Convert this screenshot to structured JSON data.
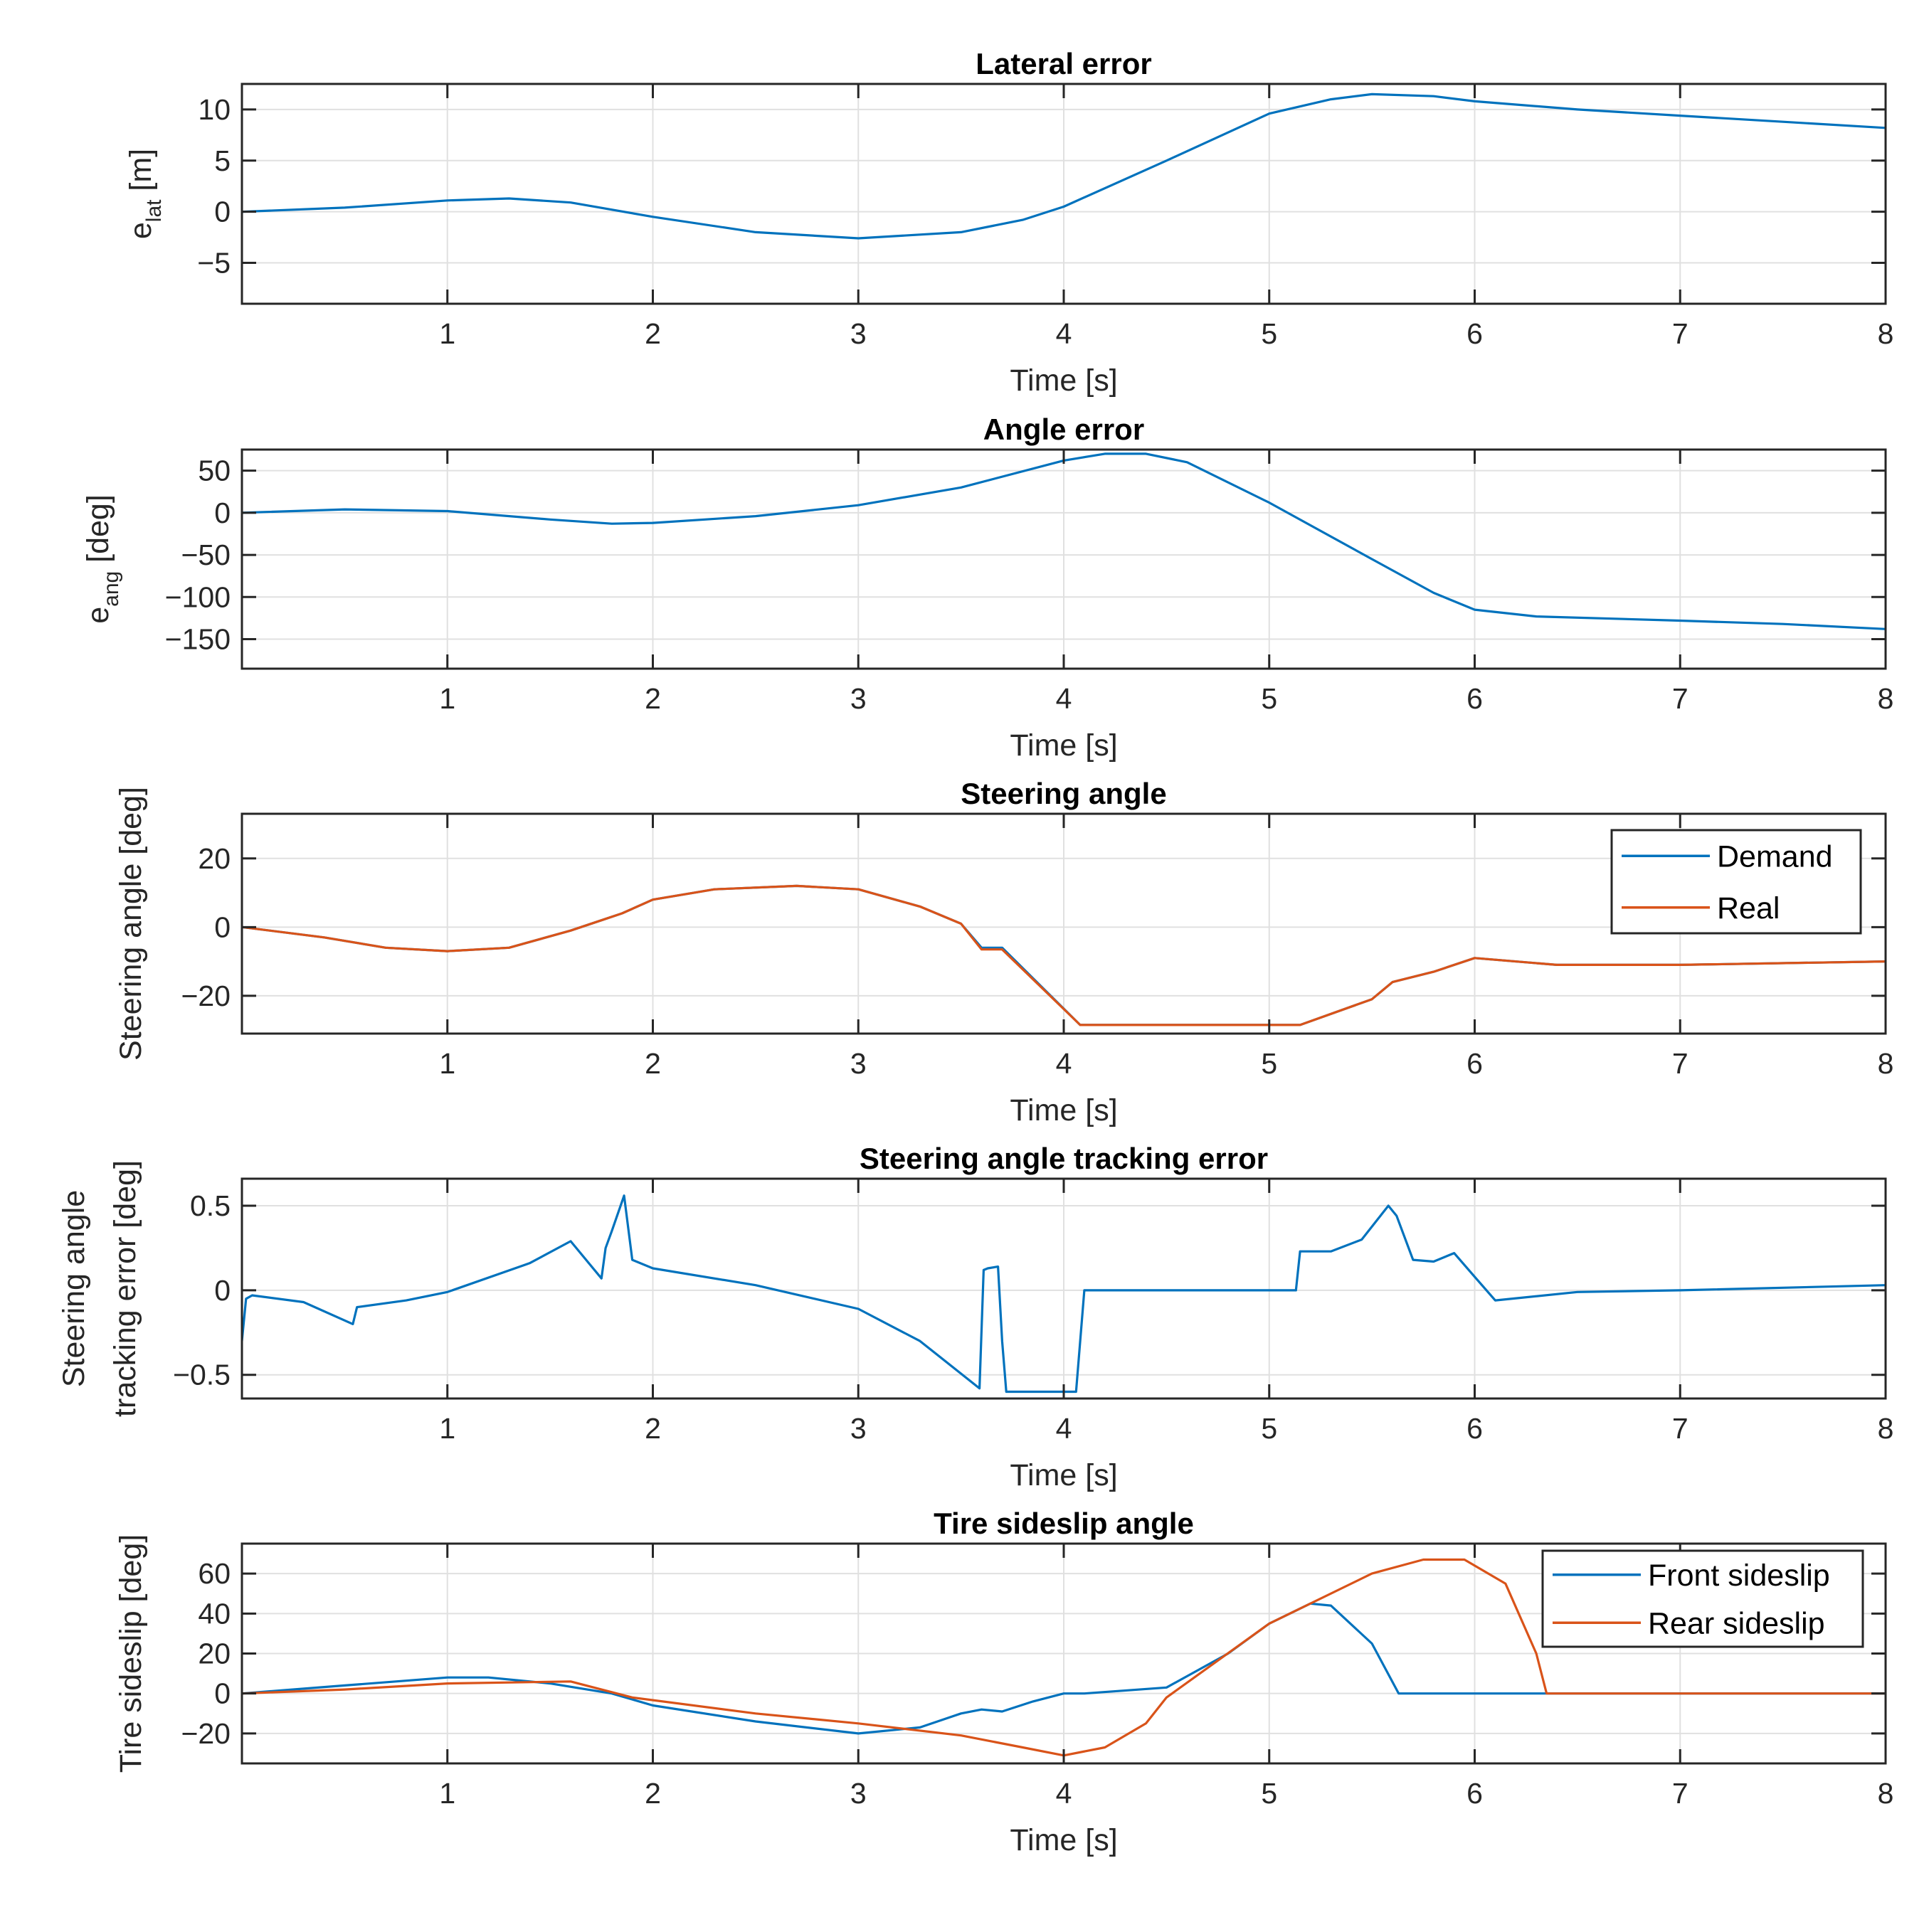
{
  "chart_data": [
    {
      "type": "line",
      "title": "Lateral error",
      "xlabel": "Time [s]",
      "ylabel": "e",
      "ylabel_sub": "lat",
      "ylabel_suffix": " [m]",
      "xlim": [
        0,
        8
      ],
      "ylim": [
        -9,
        12.5
      ],
      "xticks": [
        1,
        2,
        3,
        4,
        5,
        6,
        7,
        8
      ],
      "yticks": [
        -5,
        0,
        5,
        10
      ],
      "grid": true,
      "series": [
        {
          "name": "e_lat",
          "color": "#0072BD",
          "x": [
            0,
            0.5,
            1.0,
            1.3,
            1.6,
            2.0,
            2.5,
            3.0,
            3.5,
            3.8,
            4.0,
            4.5,
            5.0,
            5.3,
            5.5,
            5.8,
            6.0,
            6.5,
            7.0,
            7.5,
            8.0
          ],
          "y": [
            0,
            0.4,
            1.1,
            1.3,
            0.9,
            -0.5,
            -2.0,
            -2.6,
            -2.0,
            -0.8,
            0.5,
            5.0,
            9.6,
            11.0,
            11.5,
            11.3,
            10.8,
            10.0,
            9.4,
            8.8,
            8.2
          ]
        }
      ]
    },
    {
      "type": "line",
      "title": "Angle error",
      "xlabel": "Time [s]",
      "ylabel": "e",
      "ylabel_sub": "ang",
      "ylabel_suffix": " [deg]",
      "xlim": [
        0,
        8
      ],
      "ylim": [
        -185,
        75
      ],
      "xticks": [
        1,
        2,
        3,
        4,
        5,
        6,
        7,
        8
      ],
      "yticks": [
        -150,
        -100,
        -50,
        0,
        50
      ],
      "grid": true,
      "series": [
        {
          "name": "e_ang",
          "color": "#0072BD",
          "x": [
            0,
            0.5,
            1.0,
            1.5,
            1.8,
            2.0,
            2.5,
            3.0,
            3.5,
            4.0,
            4.2,
            4.4,
            4.6,
            5.0,
            5.5,
            5.8,
            6.0,
            6.3,
            7.0,
            7.5,
            8.0
          ],
          "y": [
            0,
            4,
            2,
            -8,
            -13,
            -12,
            -4,
            9,
            30,
            62,
            70,
            70,
            60,
            12,
            -55,
            -95,
            -115,
            -123,
            -128,
            -132,
            -138
          ]
        }
      ]
    },
    {
      "type": "line",
      "title": "Steering angle",
      "xlabel": "Time [s]",
      "ylabel": "Steering angle [deg]",
      "xlim": [
        0,
        8
      ],
      "ylim": [
        -31,
        33
      ],
      "xticks": [
        1,
        2,
        3,
        4,
        5,
        6,
        7,
        8
      ],
      "yticks": [
        -20,
        0,
        20
      ],
      "grid": true,
      "legend": {
        "position": "top-right",
        "entries": [
          "Demand",
          "Real"
        ]
      },
      "series": [
        {
          "name": "Demand",
          "color": "#0072BD",
          "x": [
            0,
            0.4,
            0.7,
            1.0,
            1.3,
            1.6,
            1.75,
            1.85,
            2.0,
            2.3,
            2.7,
            3.0,
            3.3,
            3.5,
            3.6,
            3.7,
            4.08,
            4.5,
            5.0,
            5.15,
            5.5,
            5.6,
            5.8,
            6.0,
            6.4,
            7.0,
            8.0
          ],
          "y": [
            0,
            -3,
            -6,
            -7,
            -6,
            -1,
            2,
            4,
            8,
            11,
            12,
            11,
            6,
            1,
            -6,
            -6,
            -28.5,
            -28.5,
            -28.5,
            -28.5,
            -21,
            -16,
            -13,
            -9,
            -11,
            -11,
            -10
          ]
        },
        {
          "name": "Real",
          "color": "#D95319",
          "x": [
            0,
            0.4,
            0.7,
            1.0,
            1.3,
            1.6,
            1.75,
            1.85,
            2.0,
            2.3,
            2.7,
            3.0,
            3.3,
            3.5,
            3.6,
            3.7,
            4.08,
            4.5,
            5.0,
            5.15,
            5.5,
            5.6,
            5.8,
            6.0,
            6.4,
            7.0,
            8.0
          ],
          "y": [
            0,
            -3,
            -6,
            -7,
            -6,
            -1,
            2,
            4,
            8,
            11,
            12,
            11,
            6,
            1,
            -6.5,
            -6.5,
            -28.5,
            -28.5,
            -28.5,
            -28.5,
            -21,
            -16,
            -13,
            -9,
            -11,
            -11,
            -10
          ]
        }
      ]
    },
    {
      "type": "line",
      "title": "Steering angle tracking error",
      "xlabel": "Time [s]",
      "ylabel": "Steering angle",
      "ylabel_line2": "tracking error [deg]",
      "xlim": [
        0,
        8
      ],
      "ylim": [
        -0.64,
        0.66
      ],
      "xticks": [
        1,
        2,
        3,
        4,
        5,
        6,
        7,
        8
      ],
      "yticks": [
        -0.5,
        0,
        0.5
      ],
      "grid": true,
      "series": [
        {
          "name": "tracking error",
          "color": "#0072BD",
          "x": [
            0,
            0.02,
            0.05,
            0.3,
            0.54,
            0.56,
            0.8,
            1.0,
            1.4,
            1.6,
            1.75,
            1.77,
            1.8,
            1.86,
            1.9,
            2.0,
            2.5,
            3.0,
            3.3,
            3.59,
            3.61,
            3.63,
            3.68,
            3.7,
            3.72,
            4.06,
            4.08,
            4.1,
            5.13,
            5.15,
            5.3,
            5.45,
            5.58,
            5.62,
            5.7,
            5.8,
            5.9,
            6.0,
            6.1,
            6.5,
            7.0,
            8.0
          ],
          "y": [
            -0.3,
            -0.05,
            -0.03,
            -0.07,
            -0.2,
            -0.1,
            -0.06,
            -0.01,
            0.16,
            0.29,
            0.07,
            0.25,
            0.35,
            0.56,
            0.18,
            0.13,
            0.03,
            -0.11,
            -0.3,
            -0.58,
            0.12,
            0.13,
            0.14,
            -0.3,
            -0.6,
            -0.6,
            -0.3,
            0,
            0,
            0.23,
            0.23,
            0.3,
            0.5,
            0.44,
            0.18,
            0.17,
            0.22,
            0.08,
            -0.06,
            -0.01,
            0,
            0.03
          ]
        }
      ]
    },
    {
      "type": "line",
      "title": "Tire sideslip angle",
      "xlabel": "Time [s]",
      "ylabel": "Tire sideslip [deg]",
      "xlim": [
        0,
        8
      ],
      "ylim": [
        -35,
        75
      ],
      "xticks": [
        1,
        2,
        3,
        4,
        5,
        6,
        7,
        8
      ],
      "yticks": [
        -20,
        0,
        20,
        40,
        60
      ],
      "grid": true,
      "legend": {
        "position": "top-right",
        "entries": [
          "Front sideslip",
          "Rear sideslip"
        ]
      },
      "series": [
        {
          "name": "Front sideslip",
          "color": "#0072BD",
          "x": [
            0,
            0.5,
            1.0,
            1.2,
            1.5,
            1.8,
            2.0,
            2.5,
            3.0,
            3.3,
            3.5,
            3.6,
            3.7,
            3.85,
            4.0,
            4.1,
            4.5,
            4.8,
            5.0,
            5.2,
            5.3,
            5.5,
            5.63,
            5.8,
            6.0,
            6.3,
            7.0,
            8.0
          ],
          "y": [
            0,
            4,
            8,
            8,
            5,
            0,
            -6,
            -14,
            -20,
            -17,
            -10,
            -8,
            -9,
            -4,
            0,
            0,
            3,
            20,
            35,
            45,
            44,
            25,
            0,
            0,
            0,
            0,
            0,
            0
          ]
        },
        {
          "name": "Rear sideslip",
          "color": "#D95319",
          "x": [
            0,
            0.5,
            1.0,
            1.6,
            1.9,
            2.5,
            3.0,
            3.5,
            3.8,
            4.0,
            4.2,
            4.4,
            4.5,
            5.0,
            5.5,
            5.75,
            5.95,
            6.15,
            6.3,
            6.35,
            7.0,
            8.0
          ],
          "y": [
            0,
            2,
            5,
            6,
            -2,
            -10,
            -15,
            -21,
            -27,
            -31,
            -27,
            -15,
            -2,
            35,
            60,
            67,
            67,
            55,
            20,
            0,
            0,
            0
          ]
        }
      ]
    }
  ]
}
